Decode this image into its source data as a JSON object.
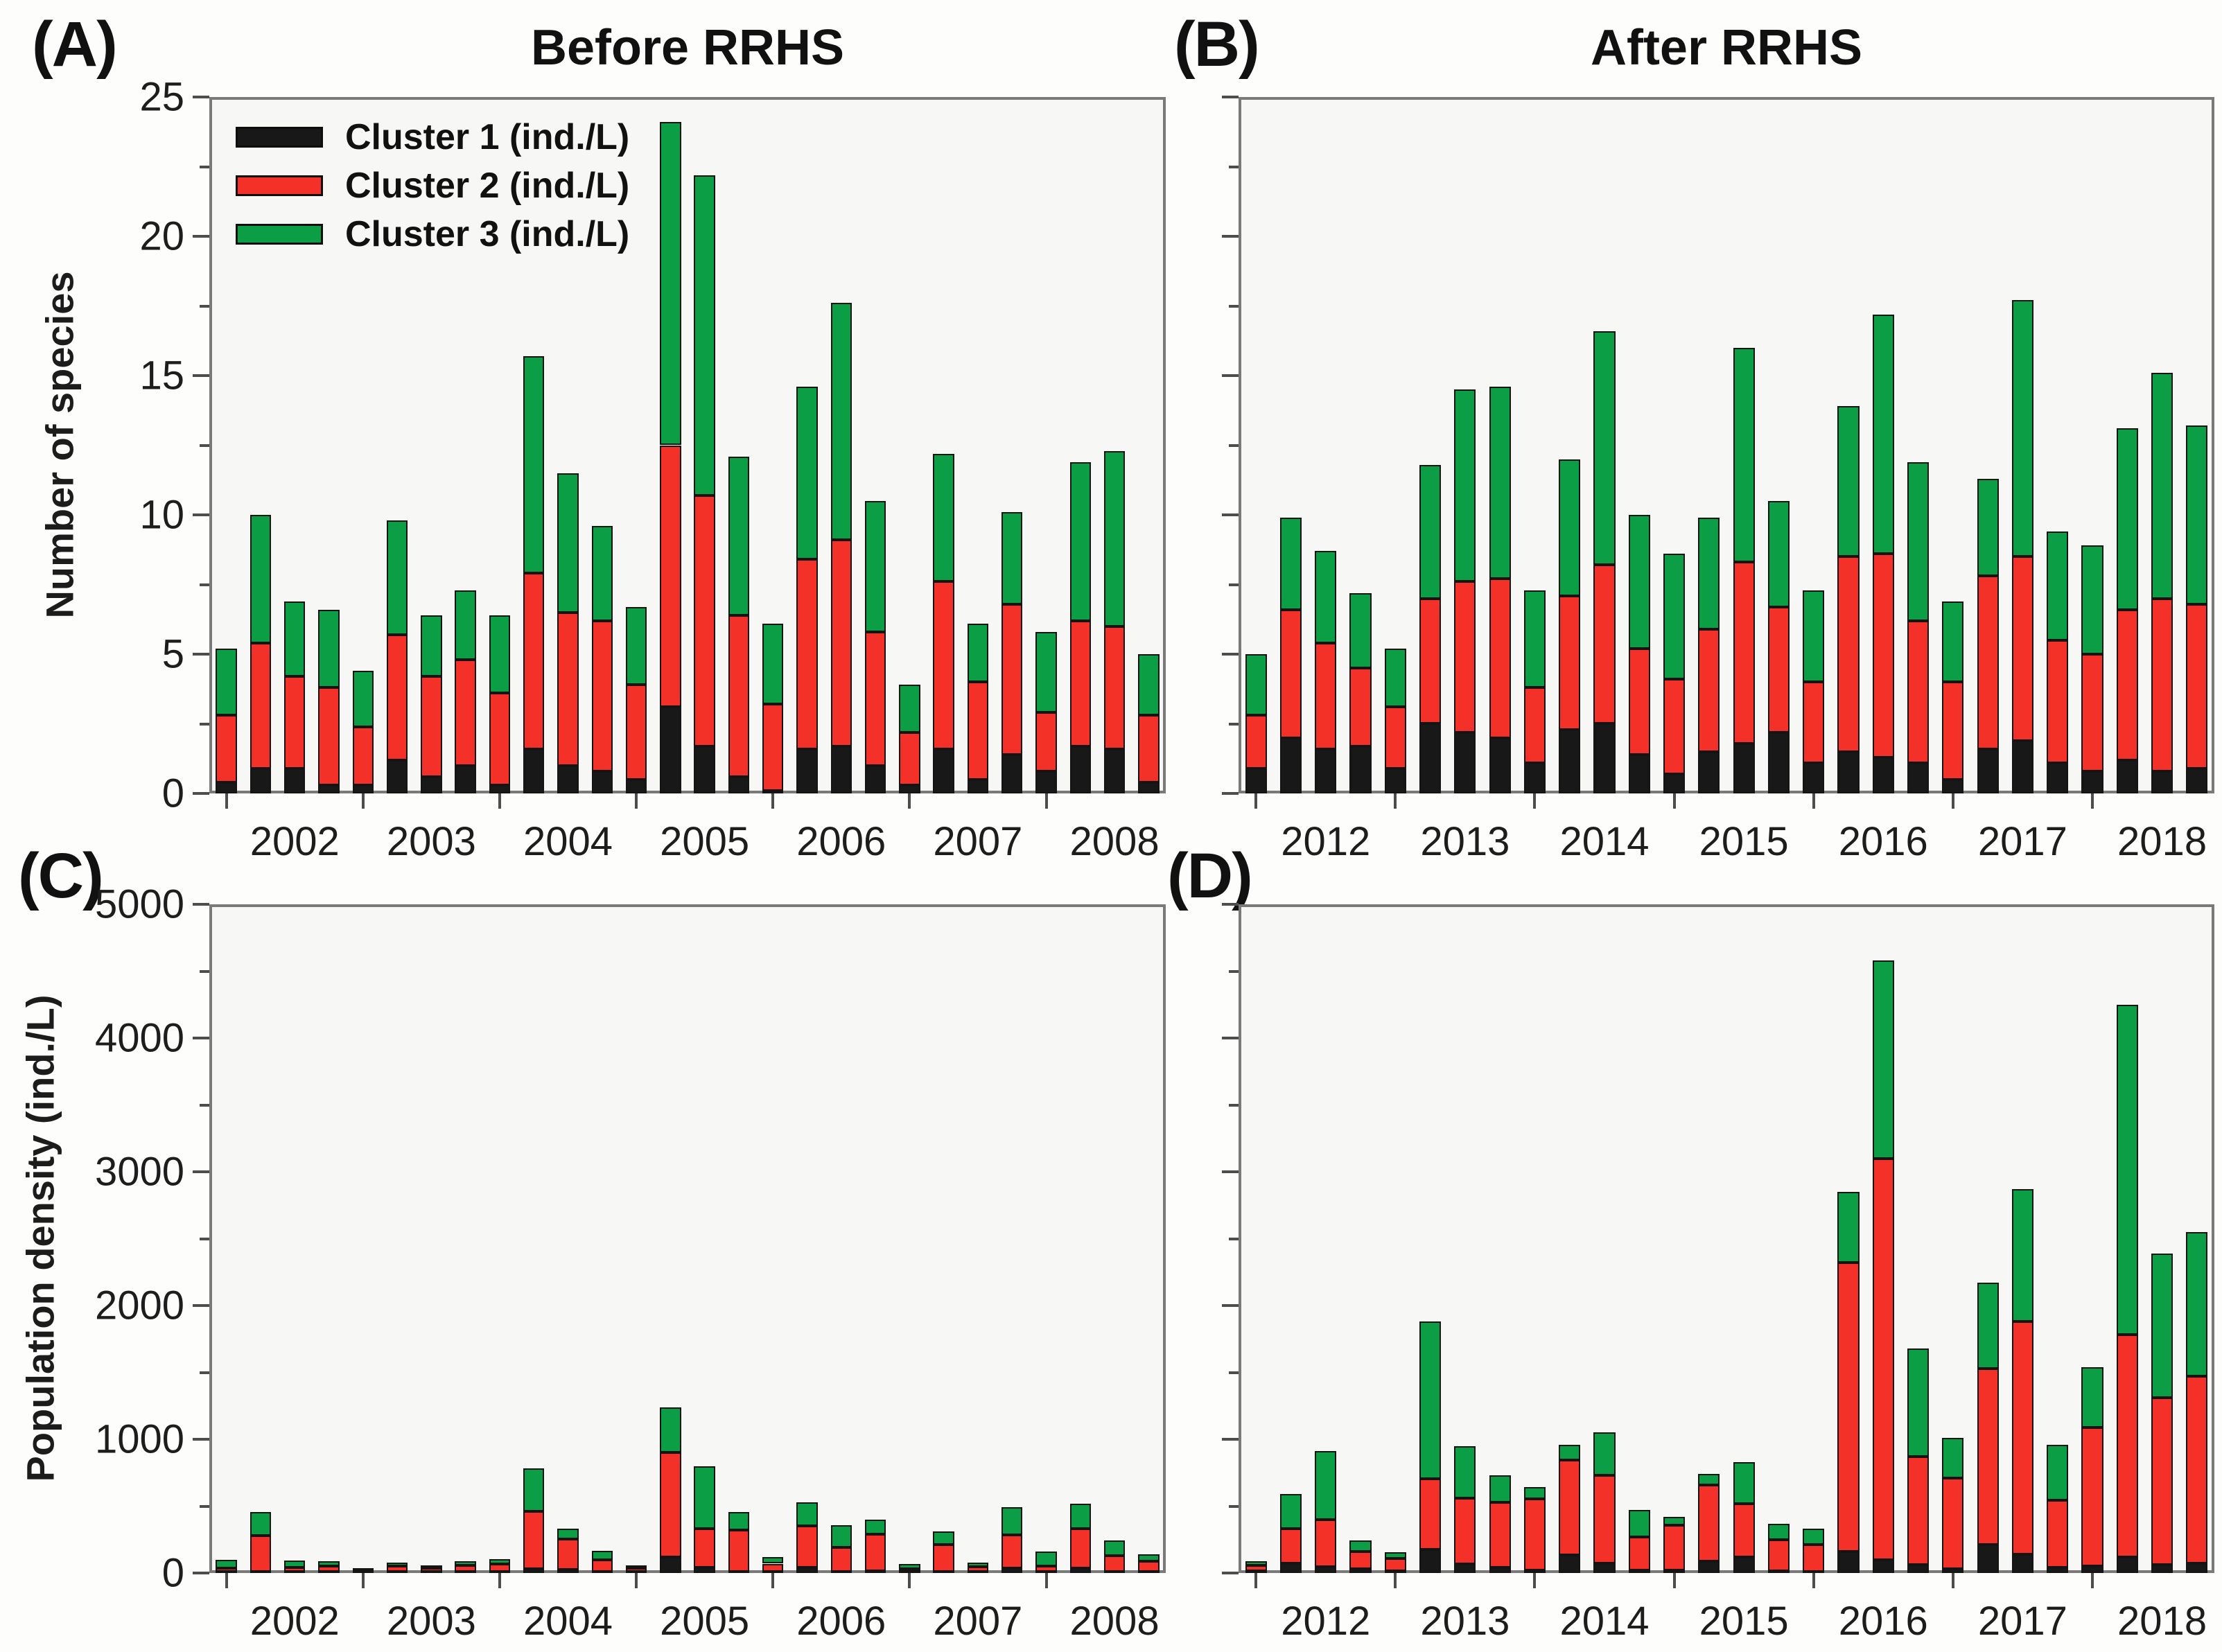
{
  "figure": {
    "tags": {
      "a": "(A)",
      "b": "(B)",
      "c": "(C)",
      "d": "(D)"
    },
    "titles": {
      "before": "Before RRHS",
      "after": "After RRHS"
    },
    "legend": [
      {
        "label": "Cluster 1 (ind./L)",
        "color": "#181818"
      },
      {
        "label": "Cluster 2 (ind./L)",
        "color": "#f33128"
      },
      {
        "label": "Cluster 3 (ind./L)",
        "color": "#0b9e45"
      }
    ],
    "legend_position": "top-left inside panel A",
    "grid": "off",
    "accent_colors": {
      "cluster1": "#181818",
      "cluster2": "#f33128",
      "cluster3": "#0b9e45"
    }
  },
  "chart_data": [
    {
      "id": "A",
      "panel_tag": "(A)",
      "title": "Before RRHS",
      "type": "bar",
      "stacked": true,
      "ylabel": "Number of species",
      "ylim": [
        0,
        25
      ],
      "yticks": [
        0,
        5,
        10,
        15,
        20,
        25
      ],
      "ytick_labels_visible": true,
      "bars_per_year": 4,
      "categories": [
        "2002",
        "2003",
        "2004",
        "2005",
        "2006",
        "2007",
        "2008"
      ],
      "series": [
        {
          "name": "Cluster 1 (ind./L)",
          "color": "#181818",
          "values": [
            0.4,
            0.9,
            0.9,
            0.3,
            0.3,
            1.2,
            0.6,
            1.0,
            0.3,
            1.6,
            1.0,
            0.8,
            0.5,
            3.1,
            1.7,
            0.6,
            0.1,
            1.6,
            1.7,
            1.0,
            0.3,
            1.6,
            0.5,
            1.4,
            0.8,
            1.7,
            1.6,
            0.4
          ]
        },
        {
          "name": "Cluster 2 (ind./L)",
          "color": "#f33128",
          "values": [
            2.4,
            4.5,
            3.3,
            3.5,
            2.1,
            4.5,
            3.6,
            3.8,
            3.3,
            6.3,
            5.5,
            5.4,
            3.4,
            9.4,
            9.0,
            5.8,
            3.1,
            6.8,
            7.4,
            4.8,
            1.9,
            6.0,
            3.5,
            5.4,
            2.1,
            4.5,
            4.4,
            2.4
          ]
        },
        {
          "name": "Cluster 3 (ind./L)",
          "color": "#0b9e45",
          "values": [
            2.4,
            4.6,
            2.7,
            2.8,
            2.0,
            4.1,
            2.2,
            2.5,
            2.8,
            7.8,
            5.0,
            3.4,
            2.8,
            11.6,
            11.5,
            5.7,
            2.9,
            6.2,
            8.5,
            4.7,
            1.7,
            4.6,
            2.1,
            3.3,
            2.9,
            5.7,
            6.3,
            2.2
          ]
        }
      ]
    },
    {
      "id": "B",
      "panel_tag": "(B)",
      "title": "After RRHS",
      "type": "bar",
      "stacked": true,
      "ylabel": "",
      "ylim": [
        0,
        25
      ],
      "yticks": [
        0,
        5,
        10,
        15,
        20,
        25
      ],
      "ytick_labels_visible": false,
      "bars_per_year": 4,
      "categories": [
        "2012",
        "2013",
        "2014",
        "2015",
        "2016",
        "2017",
        "2018"
      ],
      "series": [
        {
          "name": "Cluster 1 (ind./L)",
          "color": "#181818",
          "values": [
            0.9,
            2.0,
            1.6,
            1.7,
            0.9,
            2.5,
            2.2,
            2.0,
            1.1,
            2.3,
            2.5,
            1.4,
            0.7,
            1.5,
            1.8,
            2.2,
            1.1,
            1.5,
            1.3,
            1.1,
            0.5,
            1.6,
            1.9,
            1.1,
            0.8,
            1.2,
            0.8,
            0.9
          ]
        },
        {
          "name": "Cluster 2 (ind./L)",
          "color": "#f33128",
          "values": [
            1.9,
            4.6,
            3.8,
            2.8,
            2.2,
            4.5,
            5.4,
            5.7,
            2.7,
            4.8,
            5.7,
            3.8,
            3.4,
            4.4,
            6.5,
            4.5,
            2.9,
            7.0,
            7.3,
            5.1,
            3.5,
            6.2,
            6.6,
            4.4,
            4.2,
            5.4,
            6.2,
            5.9
          ]
        },
        {
          "name": "Cluster 3 (ind./L)",
          "color": "#0b9e45",
          "values": [
            2.2,
            3.3,
            3.3,
            2.7,
            2.1,
            4.8,
            6.9,
            6.9,
            3.5,
            4.9,
            8.4,
            4.8,
            4.5,
            4.0,
            7.7,
            3.8,
            3.3,
            5.4,
            8.6,
            5.7,
            2.9,
            3.5,
            9.2,
            3.9,
            3.9,
            6.5,
            8.1,
            6.4
          ]
        }
      ]
    },
    {
      "id": "C",
      "panel_tag": "(C)",
      "title": "",
      "type": "bar",
      "stacked": true,
      "ylabel": "Population density (ind./L)",
      "ylim": [
        0,
        5000
      ],
      "yticks": [
        0,
        1000,
        2000,
        3000,
        4000,
        5000
      ],
      "ytick_labels_visible": true,
      "bars_per_year": 4,
      "categories": [
        "2002",
        "2003",
        "2004",
        "2005",
        "2006",
        "2007",
        "2008"
      ],
      "series": [
        {
          "name": "Cluster 1 (ind./L)",
          "color": "#181818",
          "values": [
            5,
            10,
            5,
            5,
            10,
            5,
            5,
            5,
            5,
            30,
            25,
            5,
            10,
            120,
            40,
            10,
            5,
            40,
            5,
            15,
            5,
            10,
            5,
            35,
            5,
            35,
            5,
            5
          ]
        },
        {
          "name": "Cluster 2 (ind./L)",
          "color": "#f33128",
          "values": [
            30,
            270,
            35,
            45,
            5,
            45,
            30,
            50,
            60,
            430,
            230,
            95,
            25,
            780,
            290,
            310,
            65,
            310,
            185,
            275,
            25,
            205,
            40,
            250,
            45,
            295,
            125,
            85
          ]
        },
        {
          "name": "Cluster 3 (ind./L)",
          "color": "#0b9e45",
          "values": [
            65,
            175,
            55,
            40,
            5,
            30,
            15,
            35,
            40,
            320,
            75,
            65,
            10,
            340,
            470,
            135,
            50,
            180,
            165,
            110,
            35,
            95,
            35,
            205,
            110,
            190,
            115,
            50
          ]
        }
      ]
    },
    {
      "id": "D",
      "panel_tag": "(D)",
      "title": "",
      "type": "bar",
      "stacked": true,
      "ylabel": "",
      "ylim": [
        0,
        5000
      ],
      "yticks": [
        0,
        1000,
        2000,
        3000,
        4000,
        5000
      ],
      "ytick_labels_visible": false,
      "bars_per_year": 4,
      "categories": [
        "2012",
        "2013",
        "2014",
        "2015",
        "2016",
        "2017",
        "2018"
      ],
      "series": [
        {
          "name": "Cluster 1 (ind./L)",
          "color": "#181818",
          "values": [
            15,
            75,
            45,
            30,
            15,
            175,
            65,
            40,
            20,
            135,
            75,
            20,
            20,
            90,
            120,
            15,
            10,
            160,
            100,
            60,
            30,
            210,
            140,
            40,
            50,
            120,
            60,
            75
          ]
        },
        {
          "name": "Cluster 2 (ind./L)",
          "color": "#f33128",
          "values": [
            40,
            255,
            355,
            130,
            95,
            530,
            495,
            490,
            535,
            710,
            655,
            250,
            340,
            570,
            400,
            235,
            205,
            2160,
            3000,
            810,
            680,
            1320,
            1740,
            505,
            1040,
            1660,
            1250,
            1395
          ]
        },
        {
          "name": "Cluster 3 (ind./L)",
          "color": "#0b9e45",
          "values": [
            35,
            260,
            510,
            85,
            45,
            1175,
            390,
            200,
            85,
            115,
            320,
            200,
            60,
            80,
            310,
            120,
            115,
            530,
            1480,
            810,
            300,
            640,
            990,
            415,
            450,
            2470,
            1080,
            1080
          ]
        }
      ]
    }
  ]
}
